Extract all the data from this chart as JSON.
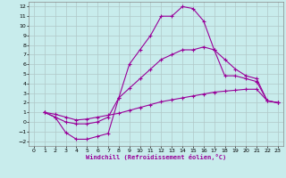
{
  "xlabel": "Windchill (Refroidissement éolien,°C)",
  "xlim": [
    -0.5,
    23.5
  ],
  "ylim": [
    -2.5,
    12.5
  ],
  "xticks": [
    0,
    1,
    2,
    3,
    4,
    5,
    6,
    7,
    8,
    9,
    10,
    11,
    12,
    13,
    14,
    15,
    16,
    17,
    18,
    19,
    20,
    21,
    22,
    23
  ],
  "yticks": [
    -2,
    -1,
    0,
    1,
    2,
    3,
    4,
    5,
    6,
    7,
    8,
    9,
    10,
    11,
    12
  ],
  "bg_color": "#c8ecec",
  "line_color": "#990099",
  "grid_color": "#b0c8c8",
  "curve1_x": [
    1,
    2,
    3,
    4,
    5,
    6,
    7,
    8,
    9,
    10,
    11,
    12,
    13,
    14,
    15,
    16,
    17,
    18,
    19,
    20,
    21,
    22,
    23
  ],
  "curve1_y": [
    1.0,
    0.5,
    -1.1,
    -1.8,
    -1.8,
    -1.5,
    -1.2,
    2.5,
    6.0,
    7.5,
    9.0,
    11.0,
    11.0,
    12.0,
    11.8,
    10.5,
    7.5,
    4.8,
    4.8,
    4.5,
    4.2,
    2.2,
    2.0
  ],
  "curve2_x": [
    1,
    2,
    3,
    4,
    5,
    6,
    7,
    8,
    9,
    10,
    11,
    12,
    13,
    14,
    15,
    16,
    17,
    18,
    19,
    20,
    21,
    22,
    23
  ],
  "curve2_y": [
    1.0,
    0.5,
    0.0,
    -0.2,
    -0.2,
    0.0,
    0.5,
    2.5,
    3.5,
    4.5,
    5.5,
    6.5,
    7.0,
    7.5,
    7.5,
    7.8,
    7.5,
    6.5,
    5.5,
    4.8,
    4.5,
    2.2,
    2.0
  ],
  "curve3_x": [
    1,
    2,
    3,
    4,
    5,
    6,
    7,
    8,
    9,
    10,
    11,
    12,
    13,
    14,
    15,
    16,
    17,
    18,
    19,
    20,
    21,
    22,
    23
  ],
  "curve3_y": [
    1.0,
    0.8,
    0.5,
    0.2,
    0.3,
    0.5,
    0.7,
    0.9,
    1.2,
    1.5,
    1.8,
    2.1,
    2.3,
    2.5,
    2.7,
    2.9,
    3.1,
    3.2,
    3.3,
    3.4,
    3.4,
    2.2,
    2.0
  ]
}
